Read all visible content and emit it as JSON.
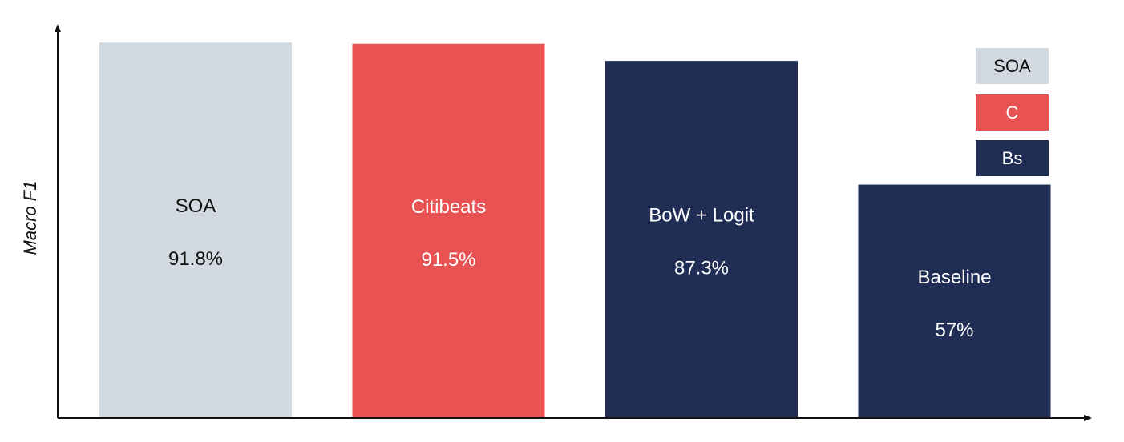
{
  "chart_data": {
    "type": "bar",
    "ylabel": "Macro F1",
    "xlabel": "",
    "ylim": [
      0,
      94
    ],
    "categories": [
      "SOA",
      "Citibeats",
      "BoW + Logit",
      "Baseline"
    ],
    "values": [
      91.8,
      91.5,
      87.3,
      57
    ],
    "value_labels": [
      "91.8%",
      "91.5%",
      "87.3%",
      "57%"
    ],
    "bar_colors": [
      "#d3d9e0",
      "#e85252",
      "#202d54",
      "#202d54"
    ],
    "label_colors": [
      "#111111",
      "#ffffff",
      "#ffffff",
      "#ffffff"
    ],
    "legend": {
      "placement": "top-right",
      "items": [
        {
          "label": "SOA",
          "color": "#d3d9e0",
          "text_color": "#111111"
        },
        {
          "label": "C",
          "color": "#e85252",
          "text_color": "#ffffff"
        },
        {
          "label": "Bs",
          "color": "#202d54",
          "text_color": "#ffffff"
        }
      ]
    },
    "grid": false
  }
}
